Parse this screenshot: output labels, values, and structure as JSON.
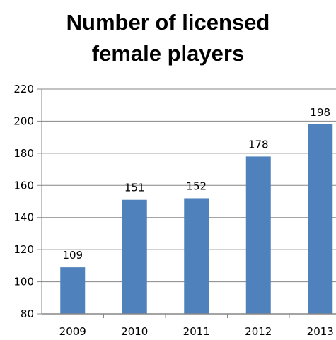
{
  "chart_data": {
    "type": "bar",
    "title_lines": [
      "Number of licensed",
      "female players"
    ],
    "categories": [
      "2009",
      "2010",
      "2011",
      "2012",
      "2013"
    ],
    "values": [
      109,
      151,
      152,
      178,
      198
    ],
    "data_labels": [
      "109",
      "151",
      "152",
      "178",
      "198"
    ],
    "ylim": [
      80,
      220
    ],
    "yticks": [
      "80",
      "100",
      "120",
      "140",
      "160",
      "180",
      "200",
      "220"
    ],
    "xlabel": "",
    "ylabel": "",
    "grid": true,
    "legend": "none",
    "bar_color": "#4f81bd",
    "grid_color": "#868686",
    "axis_color": "#868686"
  }
}
